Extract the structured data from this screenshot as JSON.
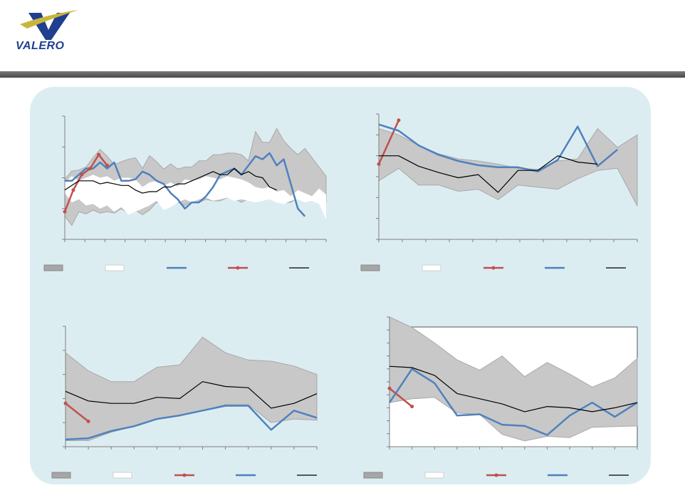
{
  "brand": {
    "name": "VALERO",
    "accent": "#1f3f8f",
    "logo_color": "#c8b63c"
  },
  "colors": {
    "band": "#c8c8c8",
    "band_edge": "#a8a8a8",
    "inner": "#ffffff",
    "series_red": "#c0504d",
    "series_blue": "#4f81bd",
    "series_black": "#000000"
  },
  "chart_data": [
    {
      "type": "area",
      "position": "top-left",
      "ylim": [
        0,
        4
      ],
      "grid": false,
      "range_band": {
        "upper": [
          1.95,
          2.22,
          2.25,
          2.35,
          2.65,
          2.92,
          2.7,
          2.42,
          2.52,
          2.6,
          2.65,
          2.3,
          2.72,
          2.52,
          2.28,
          2.45,
          2.28,
          2.35,
          2.35,
          2.55,
          2.55,
          2.75,
          2.75,
          2.8,
          2.8,
          2.75,
          2.55,
          3.5,
          3.15,
          3.15,
          3.6,
          3.2,
          2.95,
          2.75,
          2.95,
          2.65,
          2.35,
          2.05
        ],
        "lower": [
          0.75,
          0.45,
          0.9,
          0.82,
          0.95,
          0.85,
          0.9,
          0.85,
          1.0,
          0.85,
          0.95,
          0.8,
          0.95,
          1.2,
          1.15,
          1.22,
          1.2,
          1.1,
          1.25,
          1.2,
          1.3,
          1.25,
          1.25,
          1.35,
          1.32,
          1.2,
          1.32,
          1.28,
          1.3,
          1.35,
          1.3,
          1.2,
          1.2,
          1.35,
          1.32,
          1.3,
          1.2,
          1.2
        ],
        "inner_upper": [
          1.85,
          2.05,
          1.9,
          2.0,
          2.1,
          2.0,
          2.05,
          1.9,
          2.0,
          2.0,
          1.95,
          1.7,
          1.85,
          1.9,
          1.75,
          1.85,
          1.72,
          1.95,
          1.9,
          1.95,
          2.05,
          2.0,
          1.95,
          2.05,
          2.0,
          1.95,
          1.85,
          1.7,
          1.65,
          1.7,
          1.55,
          1.6,
          1.4,
          1.6,
          1.5,
          1.4,
          1.65,
          1.45
        ],
        "inner_lower": [
          1.5,
          1.2,
          1.3,
          1.1,
          1.15,
          1.0,
          1.1,
          0.9,
          1.05,
          0.8,
          0.9,
          1.0,
          1.1,
          1.25,
          0.95,
          1.05,
          1.2,
          1.3,
          1.2,
          1.3,
          1.35,
          1.25,
          1.3,
          1.35,
          1.25,
          1.3,
          1.25,
          1.2,
          1.25,
          1.3,
          1.2,
          1.15,
          1.25,
          1.3,
          1.2,
          1.25,
          1.15,
          0.65
        ]
      },
      "series": [
        {
          "name": "blue",
          "color": "#4f81bd",
          "values": [
            1.9,
            1.9,
            2.1,
            2.3,
            2.3,
            2.5,
            2.3,
            2.5,
            1.9,
            1.9,
            1.95,
            2.2,
            2.1,
            1.9,
            1.8,
            1.5,
            1.3,
            1.0,
            1.2,
            1.2,
            1.4,
            1.7,
            2.1,
            2.2,
            2.3,
            2.1,
            2.4,
            2.7,
            2.6,
            2.8,
            2.4,
            2.6,
            1.8,
            1.0,
            0.75
          ]
        },
        {
          "name": "red",
          "color": "#c0504d",
          "values": [
            0.9,
            1.6,
            2.1,
            2.3,
            2.75,
            2.4
          ]
        },
        {
          "name": "black",
          "color": "#000000",
          "values": [
            1.6,
            1.75,
            1.9,
            1.9,
            1.9,
            1.8,
            1.85,
            1.8,
            1.75,
            1.75,
            1.6,
            1.5,
            1.55,
            1.55,
            1.7,
            1.7,
            1.8,
            1.8,
            1.9,
            2.0,
            2.1,
            2.2,
            2.1,
            2.1,
            2.3,
            2.1,
            2.2,
            2.05,
            2.0,
            1.7,
            1.6
          ]
        }
      ],
      "legend": {
        "placement": "bottom",
        "entries": [
          "",
          "",
          "",
          "",
          ""
        ]
      }
    },
    {
      "type": "area",
      "position": "top-right",
      "ylim": [
        0,
        6
      ],
      "grid": false,
      "range_band": {
        "upper": [
          5.3,
          5.0,
          4.5,
          4.1,
          3.85,
          3.75,
          3.6,
          3.4,
          3.35,
          3.75,
          3.85,
          5.3,
          4.4,
          5.0
        ],
        "lower": [
          2.8,
          3.4,
          2.6,
          2.6,
          2.3,
          2.4,
          1.9,
          2.6,
          2.5,
          2.4,
          2.9,
          3.3,
          3.4,
          1.6
        ]
      },
      "series": [
        {
          "name": "red",
          "color": "#c0504d",
          "values": [
            3.6,
            5.7
          ]
        },
        {
          "name": "blue",
          "color": "#4f81bd",
          "values": [
            5.5,
            5.2,
            4.5,
            4.05,
            3.75,
            3.55,
            3.45,
            3.45,
            3.25,
            3.8,
            5.4,
            3.5,
            4.3
          ]
        },
        {
          "name": "black",
          "color": "#000000",
          "values": [
            4.0,
            4.0,
            3.5,
            3.2,
            2.95,
            3.1,
            2.25,
            3.3,
            3.3,
            4.0,
            3.7,
            3.6
          ]
        }
      ],
      "legend": {
        "placement": "bottom",
        "entries": [
          "",
          "",
          "",
          "",
          ""
        ]
      }
    },
    {
      "type": "area",
      "position": "bottom-left",
      "ylim": [
        0,
        5
      ],
      "grid": false,
      "range_band": {
        "upper": [
          3.9,
          3.15,
          2.7,
          2.7,
          3.3,
          3.4,
          4.55,
          3.9,
          3.6,
          3.55,
          3.35,
          3.0
        ],
        "lower": [
          0.25,
          0.25,
          0.6,
          0.85,
          1.15,
          1.3,
          1.5,
          1.75,
          1.75,
          1.0,
          1.15,
          1.1
        ]
      },
      "series": [
        {
          "name": "red",
          "color": "#c0504d",
          "values": [
            1.8,
            1.05
          ]
        },
        {
          "name": "blue",
          "color": "#4f81bd",
          "values": [
            0.3,
            0.35,
            0.65,
            0.85,
            1.15,
            1.3,
            1.5,
            1.7,
            1.7,
            0.7,
            1.5,
            1.2
          ]
        },
        {
          "name": "black",
          "color": "#000000",
          "values": [
            2.3,
            1.9,
            1.8,
            1.8,
            2.05,
            2.0,
            2.7,
            2.5,
            2.45,
            1.6,
            1.8,
            2.2
          ]
        }
      ],
      "legend": {
        "placement": "bottom",
        "entries": [
          "",
          "",
          "",
          "",
          ""
        ]
      }
    },
    {
      "type": "area",
      "position": "bottom-right",
      "ylim": [
        0,
        10
      ],
      "grid": false,
      "range_band": {
        "upper": [
          10,
          9.2,
          8.0,
          6.7,
          5.9,
          7.0,
          5.4,
          6.5,
          5.6,
          4.6,
          5.3,
          6.8
        ],
        "lower": [
          3.4,
          3.7,
          3.8,
          2.6,
          2.5,
          0.95,
          0.45,
          0.8,
          0.7,
          1.5,
          1.55,
          1.6
        ]
      },
      "series": [
        {
          "name": "red",
          "color": "#c0504d",
          "values": [
            4.5,
            3.1
          ]
        },
        {
          "name": "blue",
          "color": "#4f81bd",
          "values": [
            3.4,
            6.0,
            4.9,
            2.4,
            2.5,
            1.7,
            1.6,
            0.9,
            2.4,
            3.4,
            2.3,
            3.4
          ]
        },
        {
          "name": "black",
          "color": "#000000",
          "values": [
            6.2,
            6.1,
            5.5,
            4.1,
            3.7,
            3.3,
            2.7,
            3.1,
            3.0,
            2.7,
            3.0,
            3.4
          ]
        }
      ],
      "legend": {
        "placement": "bottom",
        "entries": [
          "",
          "",
          "",
          "",
          ""
        ]
      }
    }
  ]
}
